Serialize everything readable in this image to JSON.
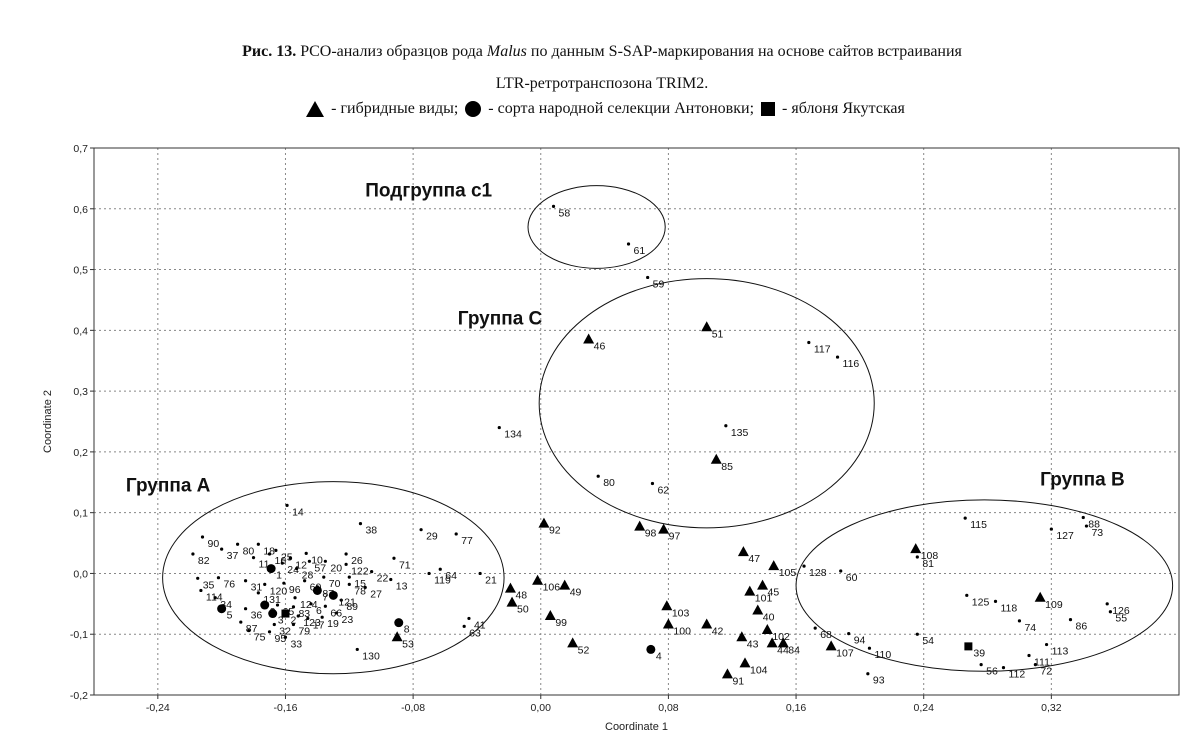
{
  "caption": {
    "fig": "Рис. 13.",
    "text1": " PCO-анализ образцов рода ",
    "genus": "Malus",
    "text2": " по данным S-SAP-маркирования на основе сайтов встраивания",
    "line2": "LTR-ретротранспозона TRIM2."
  },
  "legend": {
    "hybrid": "- гибридные виды;",
    "antonovka": "- сорта народной селекции Антоновки;",
    "yakut": "- яблоня Якутская"
  },
  "chart_data": {
    "type": "scatter",
    "xlabel": "Coordinate 1",
    "ylabel": "Coordinate 2",
    "xlim": [
      -0.28,
      0.4
    ],
    "ylim": [
      -0.2,
      0.7
    ],
    "xticks": [
      -0.24,
      -0.16,
      -0.08,
      0.0,
      0.08,
      0.16,
      0.24,
      0.32
    ],
    "xtick_labels": [
      "-0,24",
      "-0,16",
      "-0,08",
      "0,00",
      "0,08",
      "0,16",
      "0,24",
      "0,32"
    ],
    "yticks": [
      -0.2,
      -0.1,
      0.0,
      0.1,
      0.2,
      0.3,
      0.4,
      0.5,
      0.6,
      0.7
    ],
    "ytick_labels": [
      "-0,2",
      "-0,1",
      "0,0",
      "0,1",
      "0,2",
      "0,3",
      "0,4",
      "0,5",
      "0,6",
      "0,7"
    ],
    "grid": "dotted",
    "groups": [
      {
        "label": "Подгруппа с1",
        "ellipse": {
          "cx": 0.035,
          "cy": 0.57,
          "rx": 0.043,
          "ry": 0.068
        },
        "label_at": [
          -0.11,
          0.62
        ]
      },
      {
        "label": "Группа С",
        "ellipse": {
          "cx": 0.104,
          "cy": 0.28,
          "rx": 0.105,
          "ry": 0.205
        },
        "label_at": [
          -0.052,
          0.41
        ]
      },
      {
        "label": "Группа А",
        "ellipse": {
          "cx": -0.13,
          "cy": -0.007,
          "rx": 0.107,
          "ry": 0.158
        },
        "label_at": [
          -0.26,
          0.135
        ]
      },
      {
        "label": "Группа В",
        "ellipse": {
          "cx": 0.278,
          "cy": -0.02,
          "rx": 0.118,
          "ry": 0.141
        },
        "label_at": [
          0.313,
          0.145
        ]
      }
    ],
    "points": [
      {
        "id": "58",
        "x": 0.008,
        "y": 0.604,
        "m": "dot"
      },
      {
        "id": "61",
        "x": 0.055,
        "y": 0.542,
        "m": "dot"
      },
      {
        "id": "59",
        "x": 0.067,
        "y": 0.487,
        "m": "dot"
      },
      {
        "id": "51",
        "x": 0.104,
        "y": 0.405,
        "m": "tri"
      },
      {
        "id": "46",
        "x": 0.03,
        "y": 0.385,
        "m": "tri"
      },
      {
        "id": "117",
        "x": 0.168,
        "y": 0.38,
        "m": "dot"
      },
      {
        "id": "116",
        "x": 0.186,
        "y": 0.356,
        "m": "dot"
      },
      {
        "id": "134",
        "x": -0.026,
        "y": 0.24,
        "m": "dot"
      },
      {
        "id": "135",
        "x": 0.116,
        "y": 0.243,
        "m": "dot"
      },
      {
        "id": "85",
        "x": 0.11,
        "y": 0.187,
        "m": "tri"
      },
      {
        "id": "80",
        "x": 0.036,
        "y": 0.16,
        "m": "dot"
      },
      {
        "id": "62",
        "x": 0.07,
        "y": 0.148,
        "m": "dot"
      },
      {
        "id": "14",
        "x": -0.159,
        "y": 0.112,
        "m": "dot"
      },
      {
        "id": "38",
        "x": -0.113,
        "y": 0.082,
        "m": "dot"
      },
      {
        "id": "29",
        "x": -0.075,
        "y": 0.072,
        "m": "dot"
      },
      {
        "id": "77",
        "x": -0.053,
        "y": 0.065,
        "m": "dot"
      },
      {
        "id": "71",
        "x": -0.092,
        "y": 0.025,
        "m": "dot"
      },
      {
        "id": "64",
        "x": -0.063,
        "y": 0.007,
        "m": "dot"
      },
      {
        "id": "119",
        "x": -0.07,
        "y": 0.0,
        "m": "dot"
      },
      {
        "id": "21",
        "x": -0.038,
        "y": 0.0,
        "m": "dot"
      },
      {
        "id": "13",
        "x": -0.094,
        "y": -0.01,
        "m": "dot"
      },
      {
        "id": "22",
        "x": -0.106,
        "y": 0.003,
        "m": "dot"
      },
      {
        "id": "89",
        "x": -0.125,
        "y": -0.044,
        "m": "dot"
      },
      {
        "id": "23",
        "x": -0.128,
        "y": -0.065,
        "m": "dot"
      },
      {
        "id": "41",
        "x": -0.045,
        "y": -0.074,
        "m": "dot"
      },
      {
        "id": "63",
        "x": -0.048,
        "y": -0.087,
        "m": "dot"
      },
      {
        "id": "8",
        "x": -0.089,
        "y": -0.081,
        "m": "circ"
      },
      {
        "id": "53",
        "x": -0.09,
        "y": -0.105,
        "m": "tri"
      },
      {
        "id": "130",
        "x": -0.115,
        "y": -0.125,
        "m": "dot"
      },
      {
        "id": "90",
        "x": -0.212,
        "y": 0.06,
        "m": "dot"
      },
      {
        "id": "37",
        "x": -0.2,
        "y": 0.04,
        "m": "dot"
      },
      {
        "id": "80",
        "x": -0.19,
        "y": 0.048,
        "m": "dot"
      },
      {
        "id": "18",
        "x": -0.177,
        "y": 0.048,
        "m": "dot"
      },
      {
        "id": "25",
        "x": -0.166,
        "y": 0.038,
        "m": "dot"
      },
      {
        "id": "12",
        "x": -0.157,
        "y": 0.025,
        "m": "dot"
      },
      {
        "id": "10",
        "x": -0.147,
        "y": 0.033,
        "m": "dot"
      },
      {
        "id": "82",
        "x": -0.218,
        "y": 0.032,
        "m": "dot"
      },
      {
        "id": "11",
        "x": -0.18,
        "y": 0.026,
        "m": "dot"
      },
      {
        "id": "16",
        "x": -0.17,
        "y": 0.032,
        "m": "dot"
      },
      {
        "id": "24",
        "x": -0.162,
        "y": 0.017,
        "m": "dot"
      },
      {
        "id": "57",
        "x": -0.145,
        "y": 0.02,
        "m": "dot"
      },
      {
        "id": "20",
        "x": -0.135,
        "y": 0.02,
        "m": "dot"
      },
      {
        "id": "26",
        "x": -0.122,
        "y": 0.032,
        "m": "dot"
      },
      {
        "id": "122",
        "x": -0.122,
        "y": 0.015,
        "m": "dot"
      },
      {
        "id": "1",
        "x": -0.169,
        "y": 0.008,
        "m": "circ"
      },
      {
        "id": "28",
        "x": -0.153,
        "y": 0.008,
        "m": "dot"
      },
      {
        "id": "35",
        "x": -0.215,
        "y": -0.008,
        "m": "dot"
      },
      {
        "id": "76",
        "x": -0.202,
        "y": -0.007,
        "m": "dot"
      },
      {
        "id": "31",
        "x": -0.185,
        "y": -0.012,
        "m": "dot"
      },
      {
        "id": "120",
        "x": -0.173,
        "y": -0.018,
        "m": "dot"
      },
      {
        "id": "96",
        "x": -0.161,
        "y": -0.016,
        "m": "dot"
      },
      {
        "id": "60",
        "x": -0.148,
        "y": -0.012,
        "m": "dot"
      },
      {
        "id": "70",
        "x": -0.136,
        "y": -0.006,
        "m": "dot"
      },
      {
        "id": "15",
        "x": -0.12,
        "y": -0.006,
        "m": "dot"
      },
      {
        "id": "87",
        "x": -0.14,
        "y": -0.022,
        "m": "dot"
      },
      {
        "id": "78",
        "x": -0.12,
        "y": -0.018,
        "m": "dot"
      },
      {
        "id": "27",
        "x": -0.11,
        "y": -0.023,
        "m": "dot"
      },
      {
        "id": "114",
        "x": -0.213,
        "y": -0.028,
        "m": "dot"
      },
      {
        "id": "34",
        "x": -0.204,
        "y": -0.04,
        "m": "dot"
      },
      {
        "id": "131",
        "x": -0.177,
        "y": -0.032,
        "m": "dot"
      },
      {
        "id": "7",
        "x": -0.14,
        "y": -0.028,
        "m": "circ"
      },
      {
        "id": "121",
        "x": -0.13,
        "y": -0.036,
        "m": "circ"
      },
      {
        "id": "124",
        "x": -0.154,
        "y": -0.04,
        "m": "dot"
      },
      {
        "id": "5",
        "x": -0.2,
        "y": -0.058,
        "m": "circ"
      },
      {
        "id": "36",
        "x": -0.185,
        "y": -0.058,
        "m": "dot"
      },
      {
        "id": "9",
        "x": -0.173,
        "y": -0.052,
        "m": "circ"
      },
      {
        "id": "65",
        "x": -0.165,
        "y": -0.052,
        "m": "dot"
      },
      {
        "id": "6",
        "x": -0.144,
        "y": -0.05,
        "m": "dot"
      },
      {
        "id": "83",
        "x": -0.155,
        "y": -0.055,
        "m": "dot"
      },
      {
        "id": "66",
        "x": -0.135,
        "y": -0.054,
        "m": "dot"
      },
      {
        "id": "3",
        "x": -0.168,
        "y": -0.066,
        "m": "circ"
      },
      {
        "id": "2",
        "x": -0.16,
        "y": -0.066,
        "m": "sq"
      },
      {
        "id": "123",
        "x": -0.152,
        "y": -0.07,
        "m": "dot"
      },
      {
        "id": "19",
        "x": -0.137,
        "y": -0.072,
        "m": "dot"
      },
      {
        "id": "87",
        "x": -0.188,
        "y": -0.08,
        "m": "dot"
      },
      {
        "id": "17",
        "x": -0.146,
        "y": -0.074,
        "m": "dot"
      },
      {
        "id": "32",
        "x": -0.167,
        "y": -0.084,
        "m": "dot"
      },
      {
        "id": "79",
        "x": -0.155,
        "y": -0.084,
        "m": "dot"
      },
      {
        "id": "75",
        "x": -0.183,
        "y": -0.094,
        "m": "dot"
      },
      {
        "id": "95",
        "x": -0.17,
        "y": -0.096,
        "m": "dot"
      },
      {
        "id": "33",
        "x": -0.16,
        "y": -0.105,
        "m": "dot"
      },
      {
        "id": "92",
        "x": 0.002,
        "y": 0.082,
        "m": "tri"
      },
      {
        "id": "98",
        "x": 0.062,
        "y": 0.077,
        "m": "tri"
      },
      {
        "id": "97",
        "x": 0.077,
        "y": 0.072,
        "m": "tri"
      },
      {
        "id": "48",
        "x": -0.019,
        "y": -0.025,
        "m": "tri"
      },
      {
        "id": "106",
        "x": -0.002,
        "y": -0.012,
        "m": "tri"
      },
      {
        "id": "49",
        "x": 0.015,
        "y": -0.02,
        "m": "tri"
      },
      {
        "id": "50",
        "x": -0.018,
        "y": -0.048,
        "m": "tri"
      },
      {
        "id": "99",
        "x": 0.006,
        "y": -0.07,
        "m": "tri"
      },
      {
        "id": "52",
        "x": 0.02,
        "y": -0.115,
        "m": "tri"
      },
      {
        "id": "103",
        "x": 0.079,
        "y": -0.054,
        "m": "tri"
      },
      {
        "id": "100",
        "x": 0.08,
        "y": -0.084,
        "m": "tri"
      },
      {
        "id": "4",
        "x": 0.069,
        "y": -0.125,
        "m": "circ"
      },
      {
        "id": "42",
        "x": 0.104,
        "y": -0.084,
        "m": "tri"
      },
      {
        "id": "47",
        "x": 0.127,
        "y": 0.035,
        "m": "tri"
      },
      {
        "id": "105",
        "x": 0.146,
        "y": 0.012,
        "m": "tri"
      },
      {
        "id": "45",
        "x": 0.139,
        "y": -0.02,
        "m": "tri"
      },
      {
        "id": "101",
        "x": 0.131,
        "y": -0.03,
        "m": "tri"
      },
      {
        "id": "40",
        "x": 0.136,
        "y": -0.061,
        "m": "tri"
      },
      {
        "id": "102",
        "x": 0.142,
        "y": -0.093,
        "m": "tri"
      },
      {
        "id": "43",
        "x": 0.126,
        "y": -0.105,
        "m": "tri"
      },
      {
        "id": "44",
        "x": 0.145,
        "y": -0.115,
        "m": "tri"
      },
      {
        "id": "84",
        "x": 0.152,
        "y": -0.115,
        "m": "tri"
      },
      {
        "id": "104",
        "x": 0.128,
        "y": -0.148,
        "m": "tri"
      },
      {
        "id": "91",
        "x": 0.117,
        "y": -0.166,
        "m": "tri"
      },
      {
        "id": "128",
        "x": 0.165,
        "y": 0.012,
        "m": "dot"
      },
      {
        "id": "60",
        "x": 0.188,
        "y": 0.004,
        "m": "dot"
      },
      {
        "id": "115",
        "x": 0.266,
        "y": 0.091,
        "m": "dot"
      },
      {
        "id": "127",
        "x": 0.32,
        "y": 0.073,
        "m": "dot"
      },
      {
        "id": "88",
        "x": 0.34,
        "y": 0.092,
        "m": "dot"
      },
      {
        "id": "73",
        "x": 0.342,
        "y": 0.078,
        "m": "dot"
      },
      {
        "id": "108",
        "x": 0.235,
        "y": 0.04,
        "m": "tri"
      },
      {
        "id": "81",
        "x": 0.236,
        "y": 0.027,
        "m": "dot"
      },
      {
        "id": "125",
        "x": 0.267,
        "y": -0.036,
        "m": "dot"
      },
      {
        "id": "118",
        "x": 0.285,
        "y": -0.046,
        "m": "dot"
      },
      {
        "id": "109",
        "x": 0.313,
        "y": -0.04,
        "m": "tri"
      },
      {
        "id": "126",
        "x": 0.355,
        "y": -0.05,
        "m": "dot"
      },
      {
        "id": "55",
        "x": 0.357,
        "y": -0.063,
        "m": "dot"
      },
      {
        "id": "74",
        "x": 0.3,
        "y": -0.078,
        "m": "dot"
      },
      {
        "id": "86",
        "x": 0.332,
        "y": -0.076,
        "m": "dot"
      },
      {
        "id": "68",
        "x": 0.172,
        "y": -0.09,
        "m": "dot"
      },
      {
        "id": "94",
        "x": 0.193,
        "y": -0.099,
        "m": "dot"
      },
      {
        "id": "54",
        "x": 0.236,
        "y": -0.1,
        "m": "dot"
      },
      {
        "id": "107",
        "x": 0.182,
        "y": -0.12,
        "m": "tri"
      },
      {
        "id": "110",
        "x": 0.206,
        "y": -0.123,
        "m": "dot"
      },
      {
        "id": "39",
        "x": 0.268,
        "y": -0.12,
        "m": "sq"
      },
      {
        "id": "113",
        "x": 0.317,
        "y": -0.117,
        "m": "dot"
      },
      {
        "id": "111",
        "x": 0.306,
        "y": -0.135,
        "m": "dot"
      },
      {
        "id": "56",
        "x": 0.276,
        "y": -0.15,
        "m": "dot"
      },
      {
        "id": "112",
        "x": 0.29,
        "y": -0.155,
        "m": "dot"
      },
      {
        "id": "72",
        "x": 0.31,
        "y": -0.15,
        "m": "dot"
      },
      {
        "id": "93",
        "x": 0.205,
        "y": -0.165,
        "m": "dot"
      }
    ]
  }
}
